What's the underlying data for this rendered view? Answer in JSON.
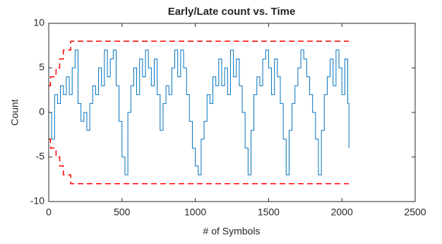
{
  "chart_data": {
    "type": "stairs",
    "title": "Early/Late count vs. Time",
    "xlabel": "# of Symbols",
    "ylabel": "Count",
    "xlim": [
      0,
      2500
    ],
    "ylim": [
      -10,
      10
    ],
    "xticks": [
      0,
      500,
      1000,
      1500,
      2000,
      2500
    ],
    "yticks": [
      -10,
      -5,
      0,
      5,
      10
    ],
    "series": [
      {
        "color": "#0072bd",
        "dashed": false,
        "x": [
          0,
          20,
          40,
          60,
          80,
          100,
          120,
          140,
          160,
          180,
          200,
          220,
          240,
          260,
          280,
          300,
          320,
          340,
          360,
          380,
          400,
          420,
          440,
          460,
          480,
          500,
          520,
          540,
          560,
          580,
          600,
          620,
          640,
          660,
          680,
          700,
          720,
          740,
          760,
          780,
          800,
          820,
          840,
          860,
          880,
          900,
          920,
          940,
          960,
          980,
          1000,
          1020,
          1040,
          1060,
          1080,
          1100,
          1120,
          1140,
          1160,
          1180,
          1200,
          1220,
          1240,
          1260,
          1280,
          1300,
          1320,
          1340,
          1360,
          1380,
          1400,
          1420,
          1440,
          1460,
          1480,
          1500,
          1520,
          1540,
          1560,
          1580,
          1600,
          1620,
          1640,
          1660,
          1680,
          1700,
          1720,
          1740,
          1760,
          1780,
          1800,
          1820,
          1840,
          1860,
          1880,
          1900,
          1920,
          1940,
          1960,
          1980,
          2000,
          2020,
          2040,
          2048
        ],
        "values": [
          0,
          -3,
          2,
          1,
          3,
          2,
          4,
          2,
          5,
          7,
          1,
          -1,
          0,
          -2,
          1,
          3,
          2,
          5,
          3,
          7,
          4,
          6,
          7,
          3,
          -1,
          -5,
          -7,
          0,
          3,
          5,
          2,
          6,
          4,
          7,
          5,
          3,
          6,
          2,
          -2,
          1,
          3,
          2,
          5,
          7,
          4,
          7,
          5,
          2,
          -1,
          -4,
          -6,
          -7,
          -3,
          -1,
          2,
          1,
          4,
          3,
          6,
          3,
          5,
          2,
          7,
          4,
          6,
          3,
          0,
          -4,
          -7,
          -2,
          2,
          4,
          3,
          6,
          7,
          5,
          2,
          6,
          4,
          1,
          -3,
          -7,
          -2,
          1,
          3,
          5,
          7,
          6,
          4,
          2,
          0,
          -3,
          -7,
          -2,
          2,
          4,
          6,
          3,
          7,
          5,
          2,
          6,
          1,
          -4
        ]
      },
      {
        "color": "#ff0000",
        "dashed": true,
        "x": [
          0,
          12,
          50,
          75,
          100,
          150,
          2048
        ],
        "values": [
          3,
          4,
          5,
          6,
          7,
          8,
          8
        ]
      },
      {
        "color": "#ff0000",
        "dashed": true,
        "x": [
          0,
          12,
          50,
          75,
          100,
          150,
          2048
        ],
        "values": [
          -3,
          -4,
          -5,
          -6,
          -7,
          -8,
          -8
        ]
      }
    ]
  }
}
